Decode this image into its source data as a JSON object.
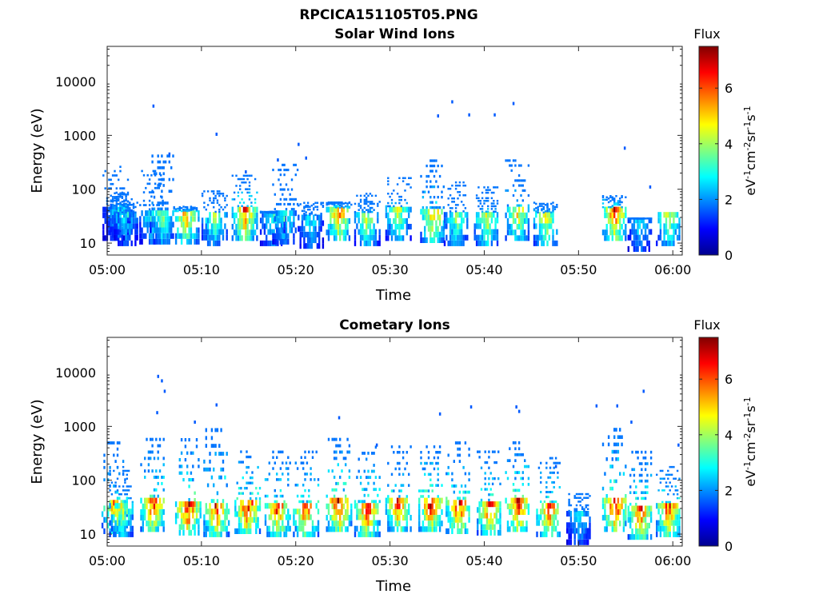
{
  "figure_title": "RPCICA151105T05.PNG",
  "chart_data": [
    {
      "type": "heatmap",
      "title": "Solar Wind Ions",
      "xlabel": "Time",
      "ylabel": "Energy (eV)",
      "x_ticks": [
        "05:00",
        "05:10",
        "05:20",
        "05:30",
        "05:40",
        "05:50",
        "06:00"
      ],
      "y_ticks": [
        "10",
        "100",
        "1000",
        "10000"
      ],
      "y_scale": "log",
      "ylim": [
        6,
        45000
      ],
      "colorbar": {
        "label": "Flux",
        "unit": "eV-1cm-2sr-1s-1",
        "ticks": [
          "0",
          "2",
          "4",
          "6"
        ],
        "range": [
          0,
          7.5
        ]
      },
      "bursts": [
        {
          "t": 0.8,
          "ef": 35,
          "peak": 2.6,
          "tail": 300
        },
        {
          "t": 1.2,
          "ef": 40,
          "peak": 3.2,
          "tail": 90
        },
        {
          "t": 2.0,
          "ef": 28,
          "peak": 3.0,
          "tail": 60
        },
        {
          "t": 4.7,
          "ef": 30,
          "peak": 3.4,
          "tail": 250
        },
        {
          "t": 5.8,
          "ef": 30,
          "peak": 4.0,
          "tail": 500
        },
        {
          "t": 8.3,
          "ef": 30,
          "peak": 5.5,
          "tail": 50
        },
        {
          "t": 11.3,
          "ef": 28,
          "peak": 4.0,
          "tail": 100
        },
        {
          "t": 14.5,
          "ef": 35,
          "peak": 6.2,
          "tail": 200
        },
        {
          "t": 17.5,
          "ef": 28,
          "peak": 3.2,
          "tail": 40
        },
        {
          "t": 18.8,
          "ef": 30,
          "peak": 3.5,
          "tail": 330
        },
        {
          "t": 21.5,
          "ef": 25,
          "peak": 3.0,
          "tail": 60
        },
        {
          "t": 24.5,
          "ef": 35,
          "peak": 6.0,
          "tail": 60
        },
        {
          "t": 27.5,
          "ef": 28,
          "peak": 4.5,
          "tail": 90
        },
        {
          "t": 30.8,
          "ef": 35,
          "peak": 4.5,
          "tail": 180
        },
        {
          "t": 34.5,
          "ef": 32,
          "peak": 5.5,
          "tail": 400
        },
        {
          "t": 37.0,
          "ef": 28,
          "peak": 4.0,
          "tail": 150
        },
        {
          "t": 40.2,
          "ef": 28,
          "peak": 4.8,
          "tail": 120
        },
        {
          "t": 43.5,
          "ef": 35,
          "peak": 5.0,
          "tail": 400
        },
        {
          "t": 46.5,
          "ef": 28,
          "peak": 4.8,
          "tail": 60
        },
        {
          "t": 53.8,
          "ef": 35,
          "peak": 6.5,
          "tail": 80
        },
        {
          "t": 56.5,
          "ef": 22,
          "peak": 3.0,
          "tail": 30
        },
        {
          "t": 59.5,
          "ef": 28,
          "peak": 4.5,
          "tail": 35
        }
      ],
      "dots": [
        {
          "t": 4.8,
          "e": 3500
        },
        {
          "t": 11.5,
          "e": 1050
        },
        {
          "t": 20.2,
          "e": 680
        },
        {
          "t": 35.0,
          "e": 2300
        },
        {
          "t": 36.5,
          "e": 4200
        },
        {
          "t": 38.3,
          "e": 2400
        },
        {
          "t": 43.0,
          "e": 3900
        },
        {
          "t": 41.0,
          "e": 2400
        },
        {
          "t": 54.8,
          "e": 580
        },
        {
          "t": 18.0,
          "e": 350
        },
        {
          "t": 21.0,
          "e": 380
        },
        {
          "t": 6.5,
          "e": 450
        },
        {
          "t": 14.6,
          "e": 210
        },
        {
          "t": 57.5,
          "e": 110
        }
      ]
    },
    {
      "type": "heatmap",
      "title": "Cometary Ions",
      "xlabel": "Time",
      "ylabel": "Energy (eV)",
      "x_ticks": [
        "05:00",
        "05:10",
        "05:20",
        "05:30",
        "05:40",
        "05:50",
        "06:00"
      ],
      "y_ticks": [
        "10",
        "100",
        "1000",
        "10000"
      ],
      "y_scale": "log",
      "ylim": [
        6,
        45000
      ],
      "colorbar": {
        "label": "Flux",
        "unit": "eV-1cm-2sr-1s-1",
        "ticks": [
          "0",
          "2",
          "4",
          "6"
        ],
        "range": [
          0,
          7.5
        ]
      },
      "bursts": [
        {
          "t": 0.7,
          "ef": 32,
          "peak": 5.8,
          "tail": 600
        },
        {
          "t": 1.5,
          "ef": 28,
          "peak": 4.5,
          "tail": 200
        },
        {
          "t": 4.8,
          "ef": 35,
          "peak": 6.5,
          "tail": 700
        },
        {
          "t": 8.5,
          "ef": 30,
          "peak": 7.0,
          "tail": 700
        },
        {
          "t": 11.5,
          "ef": 28,
          "peak": 6.5,
          "tail": 1100
        },
        {
          "t": 14.8,
          "ef": 32,
          "peak": 7.0,
          "tail": 400
        },
        {
          "t": 18.0,
          "ef": 28,
          "peak": 6.5,
          "tail": 400
        },
        {
          "t": 21.0,
          "ef": 28,
          "peak": 6.5,
          "tail": 400
        },
        {
          "t": 24.5,
          "ef": 35,
          "peak": 7.0,
          "tail": 700
        },
        {
          "t": 27.5,
          "ef": 28,
          "peak": 6.8,
          "tail": 500
        },
        {
          "t": 30.8,
          "ef": 35,
          "peak": 6.5,
          "tail": 500
        },
        {
          "t": 34.3,
          "ef": 35,
          "peak": 7.0,
          "tail": 500
        },
        {
          "t": 37.2,
          "ef": 32,
          "peak": 6.8,
          "tail": 600
        },
        {
          "t": 40.5,
          "ef": 30,
          "peak": 6.5,
          "tail": 400
        },
        {
          "t": 43.5,
          "ef": 35,
          "peak": 7.0,
          "tail": 600
        },
        {
          "t": 46.8,
          "ef": 28,
          "peak": 6.5,
          "tail": 300
        },
        {
          "t": 50.0,
          "ef": 20,
          "peak": 3.0,
          "tail": 60
        },
        {
          "t": 53.8,
          "ef": 35,
          "peak": 7.0,
          "tail": 1100
        },
        {
          "t": 56.5,
          "ef": 25,
          "peak": 6.5,
          "tail": 400
        },
        {
          "t": 59.5,
          "ef": 28,
          "peak": 6.5,
          "tail": 200
        }
      ],
      "dots": [
        {
          "t": 5.3,
          "e": 8500
        },
        {
          "t": 5.7,
          "e": 7000
        },
        {
          "t": 6.0,
          "e": 4500
        },
        {
          "t": 5.2,
          "e": 1800
        },
        {
          "t": 9.2,
          "e": 1200
        },
        {
          "t": 11.5,
          "e": 2500
        },
        {
          "t": 24.5,
          "e": 1450
        },
        {
          "t": 35.2,
          "e": 1700
        },
        {
          "t": 38.5,
          "e": 2300
        },
        {
          "t": 43.3,
          "e": 2300
        },
        {
          "t": 51.8,
          "e": 2400
        },
        {
          "t": 54.0,
          "e": 2400
        },
        {
          "t": 56.8,
          "e": 4500
        },
        {
          "t": 43.6,
          "e": 1900
        },
        {
          "t": 55.5,
          "e": 1200
        },
        {
          "t": 60.5,
          "e": 450
        },
        {
          "t": 47.5,
          "e": 180
        },
        {
          "t": 28.5,
          "e": 450
        }
      ]
    }
  ]
}
